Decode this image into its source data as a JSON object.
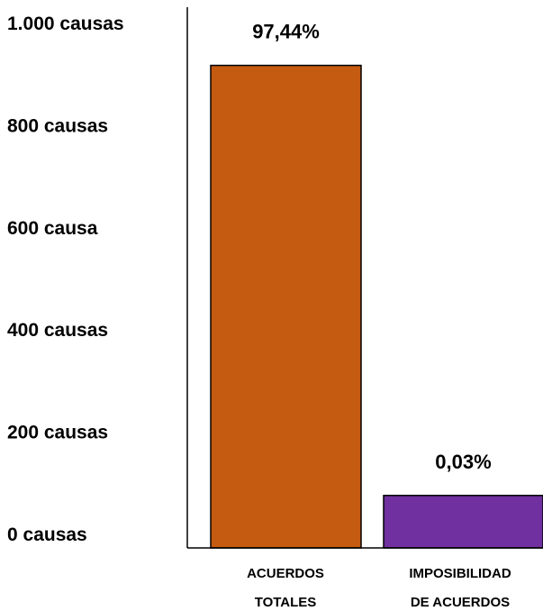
{
  "chart_data": {
    "type": "bar",
    "categories": [
      [
        "ACUERDOS",
        "TOTALES"
      ],
      [
        "IMPOSIBILIDAD",
        "DE ACUERDOS"
      ]
    ],
    "values": [
      920,
      100
    ],
    "data_labels": [
      "97,44%",
      "0,03%"
    ],
    "colors": [
      "#C55A11",
      "#7030A0"
    ],
    "ylim": [
      0,
      1000
    ],
    "yticks": [
      {
        "value": 0,
        "label": "0 causas"
      },
      {
        "value": 200,
        "label": "200 causas"
      },
      {
        "value": 400,
        "label": "400 causas"
      },
      {
        "value": 600,
        "label": "600 causa"
      },
      {
        "value": 800,
        "label": "800 causas"
      },
      {
        "value": 1000,
        "label": "1.000 causas"
      }
    ],
    "grid": false,
    "legend": "none"
  }
}
